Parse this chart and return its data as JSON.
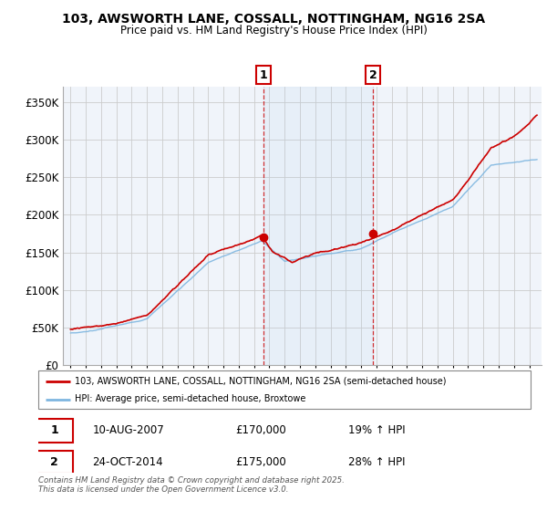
{
  "title": "103, AWSWORTH LANE, COSSALL, NOTTINGHAM, NG16 2SA",
  "subtitle": "Price paid vs. HM Land Registry's House Price Index (HPI)",
  "legend_line1": "103, AWSWORTH LANE, COSSALL, NOTTINGHAM, NG16 2SA (semi-detached house)",
  "legend_line2": "HPI: Average price, semi-detached house, Broxtowe",
  "annotation1": {
    "label": "1",
    "date": "10-AUG-2007",
    "price": 170000,
    "hpi_pct": "19% ↑ HPI"
  },
  "annotation2": {
    "label": "2",
    "date": "24-OCT-2014",
    "price": 175000,
    "hpi_pct": "28% ↑ HPI"
  },
  "footer": "Contains HM Land Registry data © Crown copyright and database right 2025.\nThis data is licensed under the Open Government Licence v3.0.",
  "price_color": "#cc0000",
  "hpi_color": "#7eb6e0",
  "chart_bg": "#f0f4fa",
  "ylim": [
    0,
    370000
  ],
  "ylabel_ticks": [
    0,
    50000,
    100000,
    150000,
    200000,
    250000,
    300000,
    350000
  ],
  "xlim_start": 1994.5,
  "xlim_end": 2025.8,
  "sale1_x": 2007.617,
  "sale1_y": 170000,
  "sale2_x": 2014.792,
  "sale2_y": 175000
}
